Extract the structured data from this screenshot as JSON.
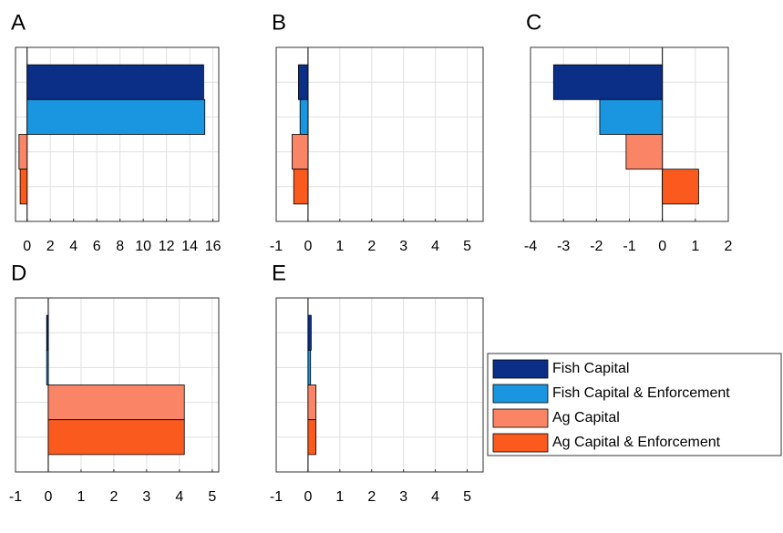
{
  "chart_data": [
    {
      "type": "bar",
      "orientation": "horizontal",
      "title": "A",
      "values": [
        15.2,
        15.3,
        -0.7,
        -0.6
      ],
      "xlim": [
        -1,
        16.5
      ],
      "xticks": [
        0,
        2,
        4,
        6,
        8,
        10,
        12,
        14,
        16
      ],
      "grid": true
    },
    {
      "type": "bar",
      "orientation": "horizontal",
      "title": "B",
      "values": [
        -0.3,
        -0.25,
        -0.5,
        -0.45
      ],
      "xlim": [
        -1,
        5.5
      ],
      "xticks": [
        -1,
        0,
        1,
        2,
        3,
        4,
        5
      ],
      "grid": true
    },
    {
      "type": "bar",
      "orientation": "horizontal",
      "title": "C",
      "values": [
        -3.3,
        -1.9,
        -1.1,
        1.1
      ],
      "xlim": [
        -4,
        2
      ],
      "xticks": [
        -4,
        -3,
        -2,
        -1,
        0,
        1,
        2
      ],
      "grid": true
    },
    {
      "type": "bar",
      "orientation": "horizontal",
      "title": "D",
      "values": [
        -0.05,
        -0.05,
        4.15,
        4.15
      ],
      "xlim": [
        -1,
        5.2
      ],
      "xticks": [
        -1,
        0,
        1,
        2,
        3,
        4,
        5
      ],
      "grid": true
    },
    {
      "type": "bar",
      "orientation": "horizontal",
      "title": "E",
      "values": [
        0.1,
        0.08,
        0.25,
        0.25
      ],
      "xlim": [
        -1,
        5.5
      ],
      "xticks": [
        -1,
        0,
        1,
        2,
        3,
        4,
        5
      ],
      "grid": true
    }
  ],
  "legend": [
    {
      "name": "Fish Capital",
      "color": "#0b2f87"
    },
    {
      "name": "Fish Capital & Enforcement",
      "color": "#1a96e0"
    },
    {
      "name": "Ag Capital",
      "color": "#f98566"
    },
    {
      "name": "Ag Capital & Enforcement",
      "color": "#fb5a1f"
    }
  ]
}
